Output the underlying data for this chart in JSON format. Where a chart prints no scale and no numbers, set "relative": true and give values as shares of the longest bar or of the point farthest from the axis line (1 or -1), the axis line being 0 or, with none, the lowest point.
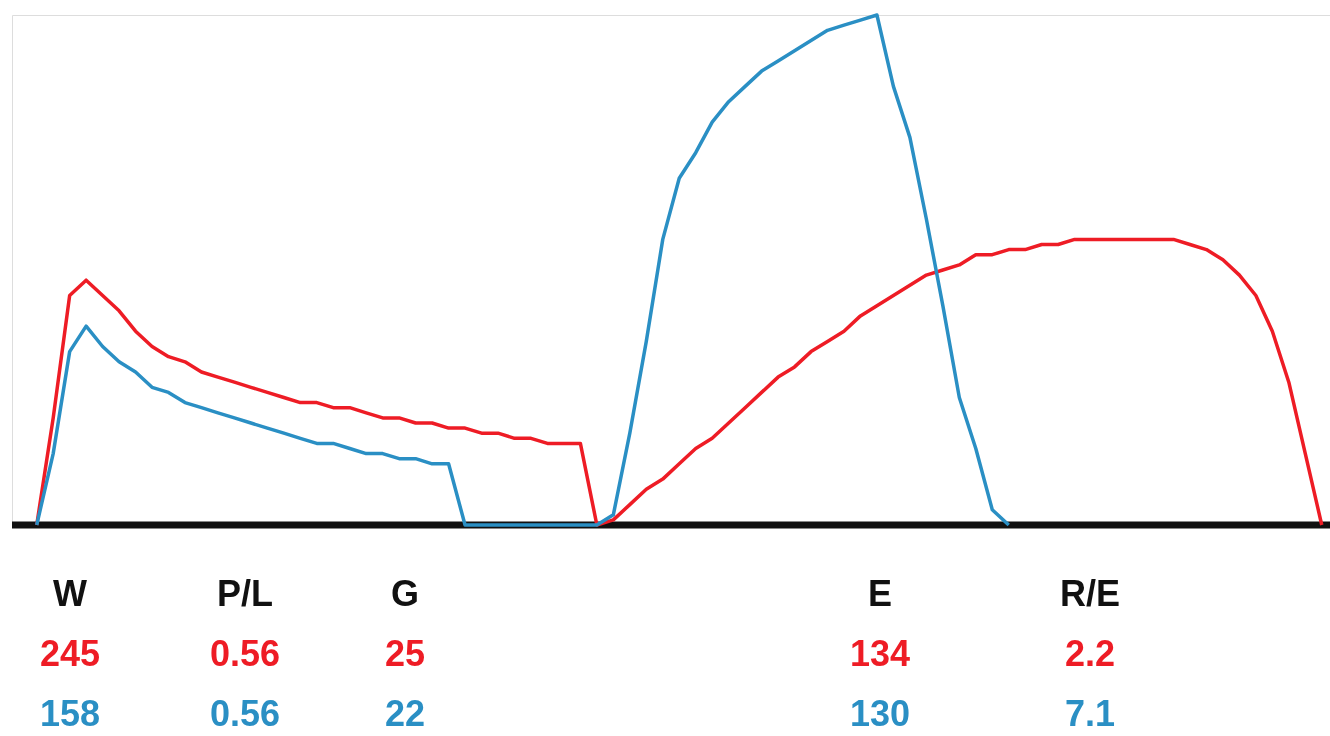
{
  "chart_data": {
    "type": "line",
    "relative": true,
    "tick_labels": false,
    "categories": [
      null,
      null,
      null,
      null,
      null,
      null,
      null,
      null,
      null,
      null,
      null,
      null,
      null,
      null,
      null,
      null,
      null,
      null,
      null,
      null,
      null,
      null,
      null,
      null,
      null,
      null,
      null,
      null,
      null,
      null,
      null,
      null,
      null,
      null,
      null,
      null,
      null,
      null,
      null,
      null,
      null,
      null,
      null,
      null,
      null,
      null,
      null,
      null,
      null,
      null,
      null,
      null,
      null,
      null,
      null,
      null,
      null,
      null,
      null,
      null,
      null,
      null,
      null,
      null,
      null,
      null,
      null,
      null,
      null,
      null,
      null,
      null,
      null,
      null,
      null,
      null,
      null,
      null,
      null,
      null
    ],
    "series": [
      {
        "color": "#ee1c25",
        "values": [
          null,
          0,
          0.21,
          0.45,
          0.48,
          0.45,
          0.42,
          0.38,
          0.35,
          0.33,
          0.32,
          0.3,
          0.29,
          0.28,
          0.27,
          0.26,
          0.25,
          0.24,
          0.24,
          0.23,
          0.23,
          0.22,
          0.21,
          0.21,
          0.2,
          0.2,
          0.19,
          0.19,
          0.18,
          0.18,
          0.17,
          0.17,
          0.16,
          0.16,
          0.16,
          0,
          0.01,
          0.04,
          0.07,
          0.09,
          0.12,
          0.15,
          0.17,
          0.2,
          0.23,
          0.26,
          0.29,
          0.31,
          0.34,
          0.36,
          0.38,
          0.41,
          0.43,
          0.45,
          0.47,
          0.49,
          0.5,
          0.51,
          0.53,
          0.53,
          0.54,
          0.54,
          0.55,
          0.55,
          0.56,
          0.56,
          0.56,
          0.56,
          0.56,
          0.56,
          0.56,
          0.55,
          0.54,
          0.52,
          0.49,
          0.45,
          0.38,
          0.28,
          0.14,
          0
        ]
      },
      {
        "color": "#2a8fc4",
        "values": [
          null,
          0,
          0.14,
          0.34,
          0.39,
          0.35,
          0.32,
          0.3,
          0.27,
          0.26,
          0.24,
          0.23,
          0.22,
          0.21,
          0.2,
          0.19,
          0.18,
          0.17,
          0.16,
          0.16,
          0.15,
          0.14,
          0.14,
          0.13,
          0.13,
          0.12,
          0.12,
          0,
          0,
          0,
          0,
          0,
          0,
          0,
          0,
          0,
          0.02,
          0.18,
          0.36,
          0.56,
          0.68,
          0.73,
          0.79,
          0.83,
          0.86,
          0.89,
          0.91,
          0.93,
          0.95,
          0.97,
          0.98,
          0.99,
          1.0,
          0.86,
          0.76,
          0.6,
          0.43,
          0.25,
          0.15,
          0.03,
          0,
          null,
          null,
          null,
          null,
          null,
          null,
          null,
          null,
          null,
          null,
          null,
          null,
          null,
          null,
          null,
          null,
          null,
          null,
          null
        ]
      }
    ],
    "annotations": [
      "W",
      "P/L",
      "G",
      "E",
      "R/E",
      "245",
      "0.56",
      "25",
      "134",
      "2.2",
      "158",
      "0.56",
      "22",
      "130",
      "7.1"
    ]
  }
}
